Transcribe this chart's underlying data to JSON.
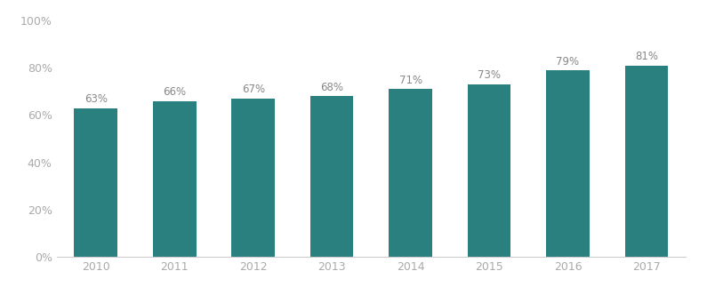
{
  "categories": [
    "2010",
    "2011",
    "2012",
    "2013",
    "2014",
    "2015",
    "2016",
    "2017"
  ],
  "values": [
    0.63,
    0.66,
    0.67,
    0.68,
    0.71,
    0.73,
    0.79,
    0.81
  ],
  "labels": [
    "63%",
    "66%",
    "67%",
    "68%",
    "71%",
    "73%",
    "79%",
    "81%"
  ],
  "bar_color": "#2a7f7f",
  "background_color": "#ffffff",
  "ylim": [
    0,
    1.0
  ],
  "yticks": [
    0,
    0.2,
    0.4,
    0.6,
    0.8,
    1.0
  ],
  "ytick_labels": [
    "0%",
    "20%",
    "40%",
    "60%",
    "80%",
    "100%"
  ],
  "label_fontsize": 8.5,
  "tick_fontsize": 9,
  "bar_width": 0.55,
  "label_color": "#888888",
  "tick_color": "#aaaaaa",
  "spine_color": "#cccccc"
}
